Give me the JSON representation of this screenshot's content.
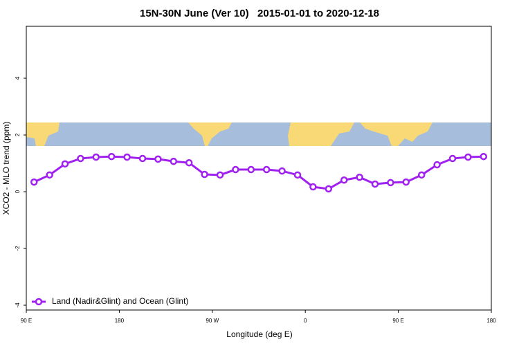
{
  "chart_data": {
    "type": "line",
    "title": "15N-30N June (Ver 10)   2015-01-01 to 2020-12-18",
    "x_label": "Longitude (deg E)",
    "y_label": "XCO2 - MLO trend (ppm)",
    "xlim": [
      90,
      540
    ],
    "xticks": [
      {
        "value": 90,
        "label": "90 E"
      },
      180,
      {
        "value": 270,
        "label": "90 W"
      },
      {
        "value": 360,
        "label": "0"
      },
      {
        "value": 450,
        "label": "90 E"
      },
      {
        "value": 540,
        "label": "180"
      }
    ],
    "ylim": [
      -4.17,
      5.83
    ],
    "yticks": [
      -4,
      -2,
      0,
      2,
      4
    ],
    "x": [
      97.5,
      112.5,
      127.5,
      142.5,
      157.5,
      172.5,
      187.5,
      202.5,
      217.5,
      232.5,
      247.5,
      262.5,
      277.5,
      292.5,
      307.5,
      322.5,
      337.5,
      352.5,
      367.5,
      382.5,
      397.5,
      412.5,
      427.5,
      442.5,
      457.5,
      472.5,
      487.5,
      502.5,
      517.5,
      532.5
    ],
    "series": [
      {
        "name": "Land (Nadir&Glint) and Ocean (Glint)",
        "color": "#a020f0",
        "values": [
          0.34,
          0.59,
          0.98,
          1.17,
          1.22,
          1.24,
          1.22,
          1.17,
          1.15,
          1.07,
          1.02,
          0.61,
          0.59,
          0.78,
          0.78,
          0.78,
          0.73,
          0.59,
          0.17,
          0.1,
          0.41,
          0.51,
          0.27,
          0.32,
          0.34,
          0.59,
          0.95,
          1.17,
          1.22,
          1.24
        ]
      }
    ],
    "legend": "bottom-left"
  }
}
